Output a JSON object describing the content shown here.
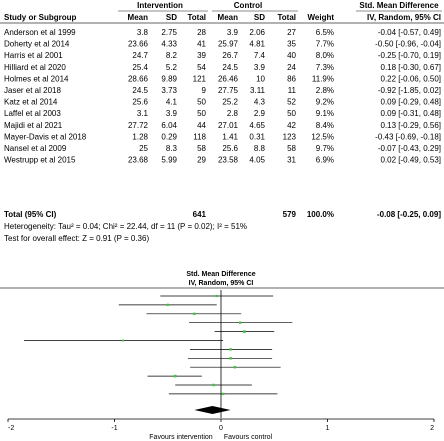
{
  "table": {
    "group_headers": {
      "intervention": "Intervention",
      "control": "Control",
      "effect": "Std. Mean Difference"
    },
    "columns": {
      "study": "Study or Subgroup",
      "mean": "Mean",
      "sd": "SD",
      "total": "Total",
      "weight": "Weight",
      "effect": "IV, Random, 95% CI"
    },
    "rows": [
      {
        "study": "Anderson et al 1999",
        "i_mean": "3.8",
        "i_sd": "2.75",
        "i_total": "28",
        "c_mean": "3.9",
        "c_sd": "2.06",
        "c_total": "27",
        "weight": "6.5%",
        "ci": "-0.04 [-0.57, 0.49]"
      },
      {
        "study": "Doherty et al 2014",
        "i_mean": "23.66",
        "i_sd": "4.33",
        "i_total": "41",
        "c_mean": "25.97",
        "c_sd": "4.81",
        "c_total": "35",
        "weight": "7.7%",
        "ci": "-0.50 [-0.96, -0.04]"
      },
      {
        "study": "Harris et al 2001",
        "i_mean": "24.7",
        "i_sd": "8.2",
        "i_total": "39",
        "c_mean": "26.7",
        "c_sd": "7.4",
        "c_total": "40",
        "weight": "8.0%",
        "ci": "-0.25 [-0.70, 0.19]"
      },
      {
        "study": "Hilliard et al 2020",
        "i_mean": "25.4",
        "i_sd": "5.2",
        "i_total": "54",
        "c_mean": "24.5",
        "c_sd": "3.9",
        "c_total": "24",
        "weight": "7.3%",
        "ci": "0.18 [-0.30, 0.67]"
      },
      {
        "study": "Holmes et al 2014",
        "i_mean": "28.66",
        "i_sd": "9.89",
        "i_total": "121",
        "c_mean": "26.46",
        "c_sd": "10",
        "c_total": "86",
        "weight": "11.9%",
        "ci": "0.22 [-0.06, 0.50]"
      },
      {
        "study": "Jaser et al 2018",
        "i_mean": "24.5",
        "i_sd": "3.73",
        "i_total": "9",
        "c_mean": "27.75",
        "c_sd": "3.11",
        "c_total": "11",
        "weight": "2.8%",
        "ci": "-0.92 [-1.85, 0.02]"
      },
      {
        "study": "Katz et al 2014",
        "i_mean": "25.6",
        "i_sd": "4.1",
        "i_total": "50",
        "c_mean": "25.2",
        "c_sd": "4.3",
        "c_total": "52",
        "weight": "9.2%",
        "ci": "0.09 [-0.29, 0.48]"
      },
      {
        "study": "Laffel et al 2003",
        "i_mean": "3.1",
        "i_sd": "3.9",
        "i_total": "50",
        "c_mean": "2.8",
        "c_sd": "2.9",
        "c_total": "50",
        "weight": "9.1%",
        "ci": "0.09 [-0.31, 0.48]"
      },
      {
        "study": "Majidi et al 2021",
        "i_mean": "27.72",
        "i_sd": "6.04",
        "i_total": "44",
        "c_mean": "27.01",
        "c_sd": "4.65",
        "c_total": "42",
        "weight": "8.4%",
        "ci": "0.13 [-0.29, 0.56]"
      },
      {
        "study": "Mayer-Davis et al 2018",
        "i_mean": "1.28",
        "i_sd": "0.29",
        "i_total": "118",
        "c_mean": "1.41",
        "c_sd": "0.31",
        "c_total": "123",
        "weight": "12.5%",
        "ci": "-0.43 [-0.69, -0.18]"
      },
      {
        "study": "Nansel et al 2009",
        "i_mean": "25",
        "i_sd": "8.3",
        "i_total": "58",
        "c_mean": "25.6",
        "c_sd": "8.8",
        "c_total": "58",
        "weight": "9.7%",
        "ci": "-0.07 [-0.43, 0.29]"
      },
      {
        "study": "Westrupp et al 2015",
        "i_mean": "23.68",
        "i_sd": "5.99",
        "i_total": "29",
        "c_mean": "23.58",
        "c_sd": "4.05",
        "c_total": "31",
        "weight": "6.9%",
        "ci": "0.02 [-0.49, 0.53]"
      }
    ],
    "total": {
      "label": "Total (95% CI)",
      "i_total": "641",
      "c_total": "579",
      "weight": "100.0%",
      "ci": "-0.08 [-0.25, 0.09]"
    },
    "heterogeneity": "Heterogeneity: Tau² = 0.04; Chi² = 22.44, df = 11 (P = 0.02); I² = 51%",
    "overall_effect": "Test for overall effect: Z = 0.91 (P = 0.36)"
  },
  "chart_data": {
    "type": "forest",
    "title": "Std. Mean Difference",
    "subtitle": "IV, Random, 95% CI",
    "xlim": [
      -2,
      2
    ],
    "x_ticks": [
      "-2",
      "-1",
      "0",
      "1",
      "2"
    ],
    "xlabel_left": "Favours intervention",
    "xlabel_right": "Favours control",
    "studies": [
      {
        "estimate": -0.04,
        "lower": -0.57,
        "upper": 0.49,
        "weight": 6.5
      },
      {
        "estimate": -0.5,
        "lower": -0.96,
        "upper": -0.04,
        "weight": 7.7
      },
      {
        "estimate": -0.25,
        "lower": -0.7,
        "upper": 0.19,
        "weight": 8.0
      },
      {
        "estimate": 0.18,
        "lower": -0.3,
        "upper": 0.67,
        "weight": 7.3
      },
      {
        "estimate": 0.22,
        "lower": -0.06,
        "upper": 0.5,
        "weight": 11.9
      },
      {
        "estimate": -0.92,
        "lower": -1.85,
        "upper": 0.02,
        "weight": 2.8
      },
      {
        "estimate": 0.09,
        "lower": -0.29,
        "upper": 0.48,
        "weight": 9.2
      },
      {
        "estimate": 0.09,
        "lower": -0.31,
        "upper": 0.48,
        "weight": 9.1
      },
      {
        "estimate": 0.13,
        "lower": -0.29,
        "upper": 0.56,
        "weight": 8.4
      },
      {
        "estimate": -0.43,
        "lower": -0.69,
        "upper": -0.18,
        "weight": 12.5
      },
      {
        "estimate": -0.07,
        "lower": -0.43,
        "upper": 0.29,
        "weight": 9.7
      },
      {
        "estimate": 0.02,
        "lower": -0.49,
        "upper": 0.53,
        "weight": 6.9
      }
    ],
    "pooled": {
      "estimate": -0.08,
      "lower": -0.25,
      "upper": 0.09
    },
    "colors": {
      "marker": "#3cc83c",
      "line": "#000000",
      "header_rule": "#666666"
    }
  }
}
